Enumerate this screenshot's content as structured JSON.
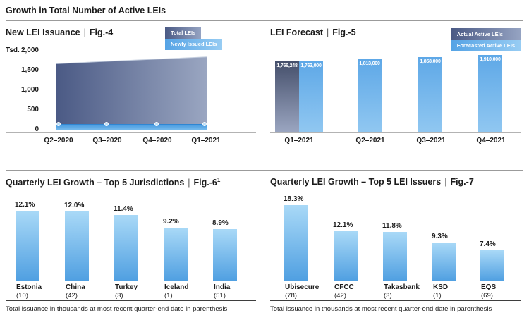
{
  "page": {
    "title": "Growth in Total Number of Active LEIs",
    "footnote": "Total issuance in thousands at most recent quarter-end date in parenthesis"
  },
  "ui": {
    "pipe": "|"
  },
  "colors": {
    "slate_dark": "#4b5a85",
    "slate_light": "#95a3c2",
    "blue_accent": "#5aa7e7",
    "blue_bar_top": "#a9d9f7",
    "blue_bar_bottom": "#4f9fe1",
    "strip_line_blue": "#2f86d2",
    "rule_gray": "#9b9b9b",
    "rule_dark": "#3e3e3e",
    "text": "#1b1b1b"
  },
  "fig4": {
    "title": "New LEI Issuance",
    "fig": "Fig.-4",
    "legend": {
      "total": "Total LEIs",
      "new": "Newly Issued LEIs"
    },
    "y_unit": "Tsd.",
    "y_ticks": [
      "2,000",
      "1,500",
      "1,000",
      "500",
      "0"
    ],
    "x_labels": [
      "Q2–2020",
      "Q3–2020",
      "Q4–2020",
      "Q1–2021"
    ]
  },
  "fig5": {
    "title": "LEI Forecast",
    "fig": "Fig.-5",
    "legend": {
      "actual": "Actual Active LEIs",
      "forecast": "Forecasted Active LEIs"
    },
    "x_labels": [
      "Q1–2021",
      "Q2–2021",
      "Q3–2021",
      "Q4–2021"
    ],
    "bars": [
      {
        "label": "1,766,248",
        "type": "actual"
      },
      {
        "label": "1,763,000",
        "type": "forecast"
      },
      {
        "label": "1,813,000",
        "type": "forecast"
      },
      {
        "label": "1,858,000",
        "type": "forecast"
      },
      {
        "label": "1,910,000",
        "type": "forecast"
      }
    ]
  },
  "fig6": {
    "title": "Quarterly LEI Growth – Top 5 Jurisdictions",
    "fig": "Fig.-6",
    "fig_sup": "1",
    "bars": [
      {
        "pct": "12.1%",
        "name": "Estonia",
        "count": "(10)"
      },
      {
        "pct": "12.0%",
        "name": "China",
        "count": "(42)"
      },
      {
        "pct": "11.4%",
        "name": "Turkey",
        "count": "(3)"
      },
      {
        "pct": "9.2%",
        "name": "Iceland",
        "count": "(1)"
      },
      {
        "pct": "8.9%",
        "name": "India",
        "count": "(51)"
      }
    ]
  },
  "fig7": {
    "title": "Quarterly LEI Growth – Top 5 LEI Issuers",
    "fig": "Fig.-7",
    "bars": [
      {
        "pct": "18.3%",
        "name": "Ubisecure",
        "count": "(78)"
      },
      {
        "pct": "12.1%",
        "name": "CFCC",
        "count": "(42)"
      },
      {
        "pct": "11.8%",
        "name": "Takasbank",
        "count": "(3)"
      },
      {
        "pct": "9.3%",
        "name": "KSD",
        "count": "(1)"
      },
      {
        "pct": "7.4%",
        "name": "EQS",
        "count": "(69)"
      }
    ]
  },
  "chart_data": [
    {
      "type": "area",
      "title": "New LEI Issuance",
      "fig": "Fig.-4",
      "x": [
        "Q2–2020",
        "Q3–2020",
        "Q4–2020",
        "Q1–2021"
      ],
      "ylabel": "Tsd.",
      "ylim": [
        0,
        2000
      ],
      "y_ticks": [
        2000,
        1500,
        1000,
        500,
        0
      ],
      "grid": false,
      "legend_position": "top-right",
      "series": [
        {
          "name": "Total LEIs",
          "values": [
            1690,
            1750,
            1805,
            1860
          ],
          "note": "approx, read from axis (thousands)"
        },
        {
          "name": "Newly Issued LEIs",
          "values": [
            125,
            125,
            125,
            125
          ],
          "note": "approx, read from axis (thousands)"
        }
      ]
    },
    {
      "type": "bar",
      "title": "LEI Forecast",
      "fig": "Fig.-5",
      "categories": [
        "Q1–2021",
        "Q2–2021",
        "Q3–2021",
        "Q4–2021"
      ],
      "legend_position": "top-right",
      "data_labels": true,
      "series": [
        {
          "name": "Actual Active LEIs",
          "values": [
            1766248,
            null,
            null,
            null
          ]
        },
        {
          "name": "Forecasted Active LEIs",
          "values": [
            1763000,
            1813000,
            1858000,
            1910000
          ]
        }
      ]
    },
    {
      "type": "bar",
      "title": "Quarterly LEI Growth – Top 5 Jurisdictions",
      "fig": "Fig.-6¹",
      "categories": [
        "Estonia",
        "China",
        "Turkey",
        "Iceland",
        "India"
      ],
      "values": [
        12.1,
        12.0,
        11.4,
        9.2,
        8.9
      ],
      "unit": "%",
      "issuance_thousands": [
        10,
        42,
        3,
        1,
        51
      ],
      "footnote": "Total issuance in thousands at most recent quarter-end date in parenthesis"
    },
    {
      "type": "bar",
      "title": "Quarterly LEI Growth – Top 5 LEI Issuers",
      "fig": "Fig.-7",
      "categories": [
        "Ubisecure",
        "CFCC",
        "Takasbank",
        "KSD",
        "EQS"
      ],
      "values": [
        18.3,
        12.1,
        11.8,
        9.3,
        7.4
      ],
      "unit": "%",
      "issuance_thousands": [
        78,
        42,
        3,
        1,
        69
      ],
      "footnote": "Total issuance in thousands at most recent quarter-end date in parenthesis"
    }
  ]
}
